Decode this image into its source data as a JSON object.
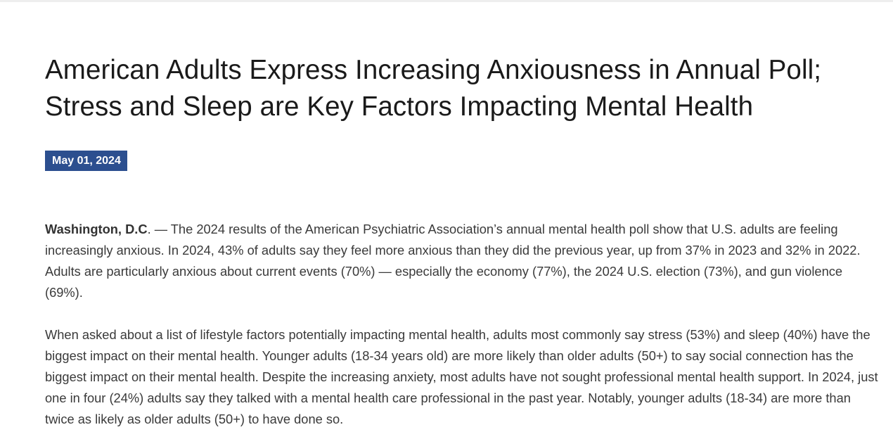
{
  "article": {
    "headline_line1": "American Adults Express Increasing Anxiousness in Annual Poll;",
    "headline_line2": "Stress and Sleep are Key Factors Impacting Mental Health",
    "date": "May 01, 2024",
    "dateline": "Washington, D.C",
    "paragraph1_rest": ". — The 2024 results of the American Psychiatric Association’s annual mental health poll show that U.S. adults are feeling increasingly anxious. In 2024, 43% of adults say they feel more anxious than they did the previous year, up from 37% in 2023 and 32% in 2022. Adults are particularly anxious about current events (70%) — especially the economy (77%), the 2024 U.S. election (73%), and gun violence (69%).",
    "paragraph2": "When asked about a list of lifestyle factors potentially impacting mental health, adults most commonly say stress (53%) and sleep (40%) have the biggest impact on their mental health. Younger adults (18-34 years old) are more likely than older adults (50+) to say social connection has the biggest impact on their mental health. Despite the increasing anxiety, most adults have not sought professional mental health support. In 2024, just one in four (24%) adults say they talked with a mental health care professional in the past year. Notably, younger adults (18-34) are more than twice as likely as older adults (50+) to have done so."
  },
  "colors": {
    "badge_background": "#2c4f8f",
    "headline": "#1a1a1a",
    "body_text": "#3a3a3a"
  }
}
